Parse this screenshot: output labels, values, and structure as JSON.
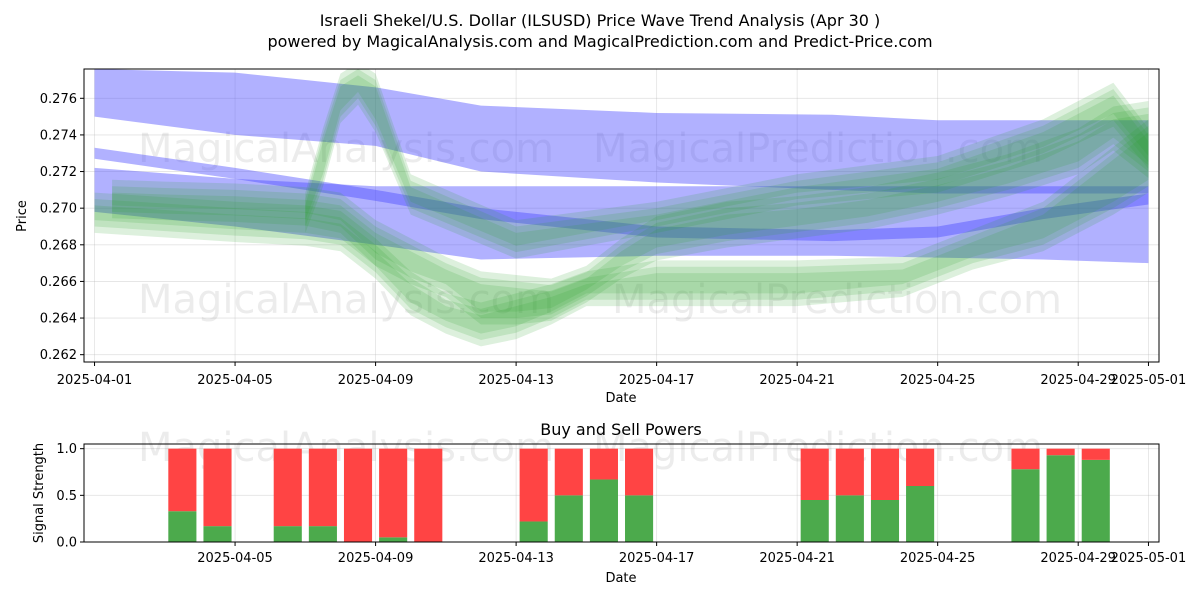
{
  "chart_data": [
    {
      "type": "area",
      "title": "Israeli Shekel/U.S. Dollar (ILSUSD) Price Wave Trend Analysis (Apr 30 )",
      "subtitle": "powered by MagicalAnalysis.com and MagicalPrediction.com and Predict-Price.com",
      "xlabel": "Date",
      "ylabel": "Price",
      "xlim": [
        -0.3,
        30.3
      ],
      "ylim": [
        0.2616,
        0.2776
      ],
      "grid": true,
      "x_ticks": [
        "2025-04-01",
        "2025-04-05",
        "2025-04-09",
        "2025-04-13",
        "2025-04-17",
        "2025-04-21",
        "2025-04-25",
        "2025-04-29",
        "2025-05-01"
      ],
      "x_tick_days": [
        0,
        4,
        8,
        12,
        16,
        20,
        24,
        28,
        30
      ],
      "y_ticks": [
        0.262,
        0.264,
        0.266,
        0.268,
        0.27,
        0.272,
        0.274,
        0.276
      ],
      "series": [
        {
          "name": "blue-band-upper",
          "color": "#4444ff",
          "x": [
            0,
            4,
            8,
            11,
            16,
            21,
            24,
            27,
            30
          ],
          "upper": [
            0.2776,
            0.2774,
            0.2766,
            0.2756,
            0.2752,
            0.2751,
            0.2748,
            0.2748,
            0.2748
          ],
          "lower": [
            0.275,
            0.274,
            0.2734,
            0.272,
            0.2714,
            0.271,
            0.2708,
            0.2708,
            0.2708
          ]
        },
        {
          "name": "blue-band-lower",
          "color": "#4444ff",
          "x": [
            0,
            4,
            8,
            11,
            16,
            21,
            24,
            27,
            30
          ],
          "upper": [
            0.2722,
            0.2716,
            0.2712,
            0.2712,
            0.2712,
            0.2712,
            0.2712,
            0.2712,
            0.2712
          ],
          "lower": [
            0.2698,
            0.269,
            0.268,
            0.2672,
            0.2674,
            0.2674,
            0.2673,
            0.2672,
            0.267
          ]
        },
        {
          "name": "blue-thin-trend",
          "color": "#4444ff",
          "x": [
            0,
            4,
            8,
            11,
            16,
            21,
            24,
            27,
            30
          ],
          "upper": [
            0.2733,
            0.2722,
            0.271,
            0.27,
            0.269,
            0.2688,
            0.269,
            0.27,
            0.2708
          ],
          "lower": [
            0.2727,
            0.2716,
            0.2704,
            0.2694,
            0.2684,
            0.2682,
            0.2684,
            0.2694,
            0.2702
          ]
        },
        {
          "name": "green-price-wave",
          "color": "#2ca02c",
          "x": [
            0.5,
            2,
            4,
            6,
            7,
            8,
            9,
            10,
            11,
            12,
            13,
            14,
            15,
            16,
            18,
            20,
            22,
            24,
            26,
            28,
            29,
            30
          ],
          "upper": [
            0.2712,
            0.2711,
            0.271,
            0.2708,
            0.2705,
            0.269,
            0.268,
            0.267,
            0.2662,
            0.266,
            0.2658,
            0.2665,
            0.268,
            0.2692,
            0.27,
            0.2703,
            0.2708,
            0.2716,
            0.2726,
            0.274,
            0.2752,
            0.2755
          ],
          "lower": [
            0.2698,
            0.2697,
            0.2696,
            0.2694,
            0.269,
            0.2672,
            0.2662,
            0.2655,
            0.264,
            0.264,
            0.2642,
            0.2652,
            0.2665,
            0.2675,
            0.2682,
            0.2687,
            0.2692,
            0.27,
            0.271,
            0.2722,
            0.2735,
            0.272
          ]
        },
        {
          "name": "green-forecast-upper",
          "color": "#2ca02c",
          "x": [
            6,
            6.5,
            7,
            7.5,
            8,
            9,
            12,
            16,
            20,
            24,
            27,
            29,
            30
          ],
          "upper": [
            0.2705,
            0.274,
            0.277,
            0.2776,
            0.277,
            0.2715,
            0.269,
            0.27,
            0.2715,
            0.2725,
            0.2745,
            0.2765,
            0.274
          ],
          "lower": [
            0.269,
            0.2715,
            0.275,
            0.276,
            0.2745,
            0.27,
            0.2676,
            0.269,
            0.2705,
            0.2712,
            0.273,
            0.2748,
            0.2725
          ]
        },
        {
          "name": "green-forecast-lower",
          "color": "#2ca02c",
          "x": [
            0,
            4,
            6,
            7,
            8,
            9,
            10,
            11,
            12,
            13,
            14,
            16,
            20,
            23,
            25,
            27,
            29,
            30
          ],
          "upper": [
            0.2705,
            0.27,
            0.2698,
            0.2695,
            0.268,
            0.2662,
            0.265,
            0.2645,
            0.265,
            0.2655,
            0.2662,
            0.2668,
            0.2668,
            0.267,
            0.2685,
            0.27,
            0.273,
            0.2745
          ],
          "lower": [
            0.269,
            0.2685,
            0.2683,
            0.268,
            0.2665,
            0.2645,
            0.2635,
            0.2628,
            0.2632,
            0.264,
            0.265,
            0.265,
            0.265,
            0.2655,
            0.267,
            0.268,
            0.27,
            0.2712
          ]
        }
      ]
    },
    {
      "type": "bar",
      "title": "Buy and Sell Powers",
      "xlabel": "Date",
      "ylabel": "Signal Strength",
      "xlim": [
        -0.3,
        30.3
      ],
      "ylim": [
        0,
        1.05
      ],
      "grid": true,
      "x_ticks": [
        "2025-04-05",
        "2025-04-09",
        "2025-04-13",
        "2025-04-17",
        "2025-04-21",
        "2025-04-25",
        "2025-04-29",
        "2025-05-01"
      ],
      "x_tick_days": [
        4,
        8,
        12,
        16,
        20,
        24,
        28,
        30
      ],
      "y_ticks": [
        "0.0",
        "0.5",
        "1.0"
      ],
      "y_tick_values": [
        0,
        0.5,
        1.0
      ],
      "buy_color": "#4caa4c",
      "sell_color": "#ff4444",
      "days": [
        2,
        3,
        5,
        6,
        7,
        8,
        9,
        12,
        13,
        14,
        15,
        20,
        21,
        22,
        23,
        26,
        27,
        28
      ],
      "buy": [
        0.33,
        0.17,
        0.17,
        0.17,
        0.0,
        0.05,
        0.0,
        0.22,
        0.5,
        0.67,
        0.5,
        0.45,
        0.5,
        0.45,
        0.6,
        0.78,
        0.93,
        0.88
      ],
      "sell": [
        0.67,
        0.83,
        0.83,
        0.83,
        1.0,
        0.95,
        1.0,
        0.78,
        0.5,
        0.33,
        0.5,
        0.55,
        0.5,
        0.55,
        0.4,
        0.22,
        0.07,
        0.12
      ]
    }
  ],
  "watermarks": [
    "MagicalAnalysis.com",
    "MagicalPrediction.com"
  ]
}
